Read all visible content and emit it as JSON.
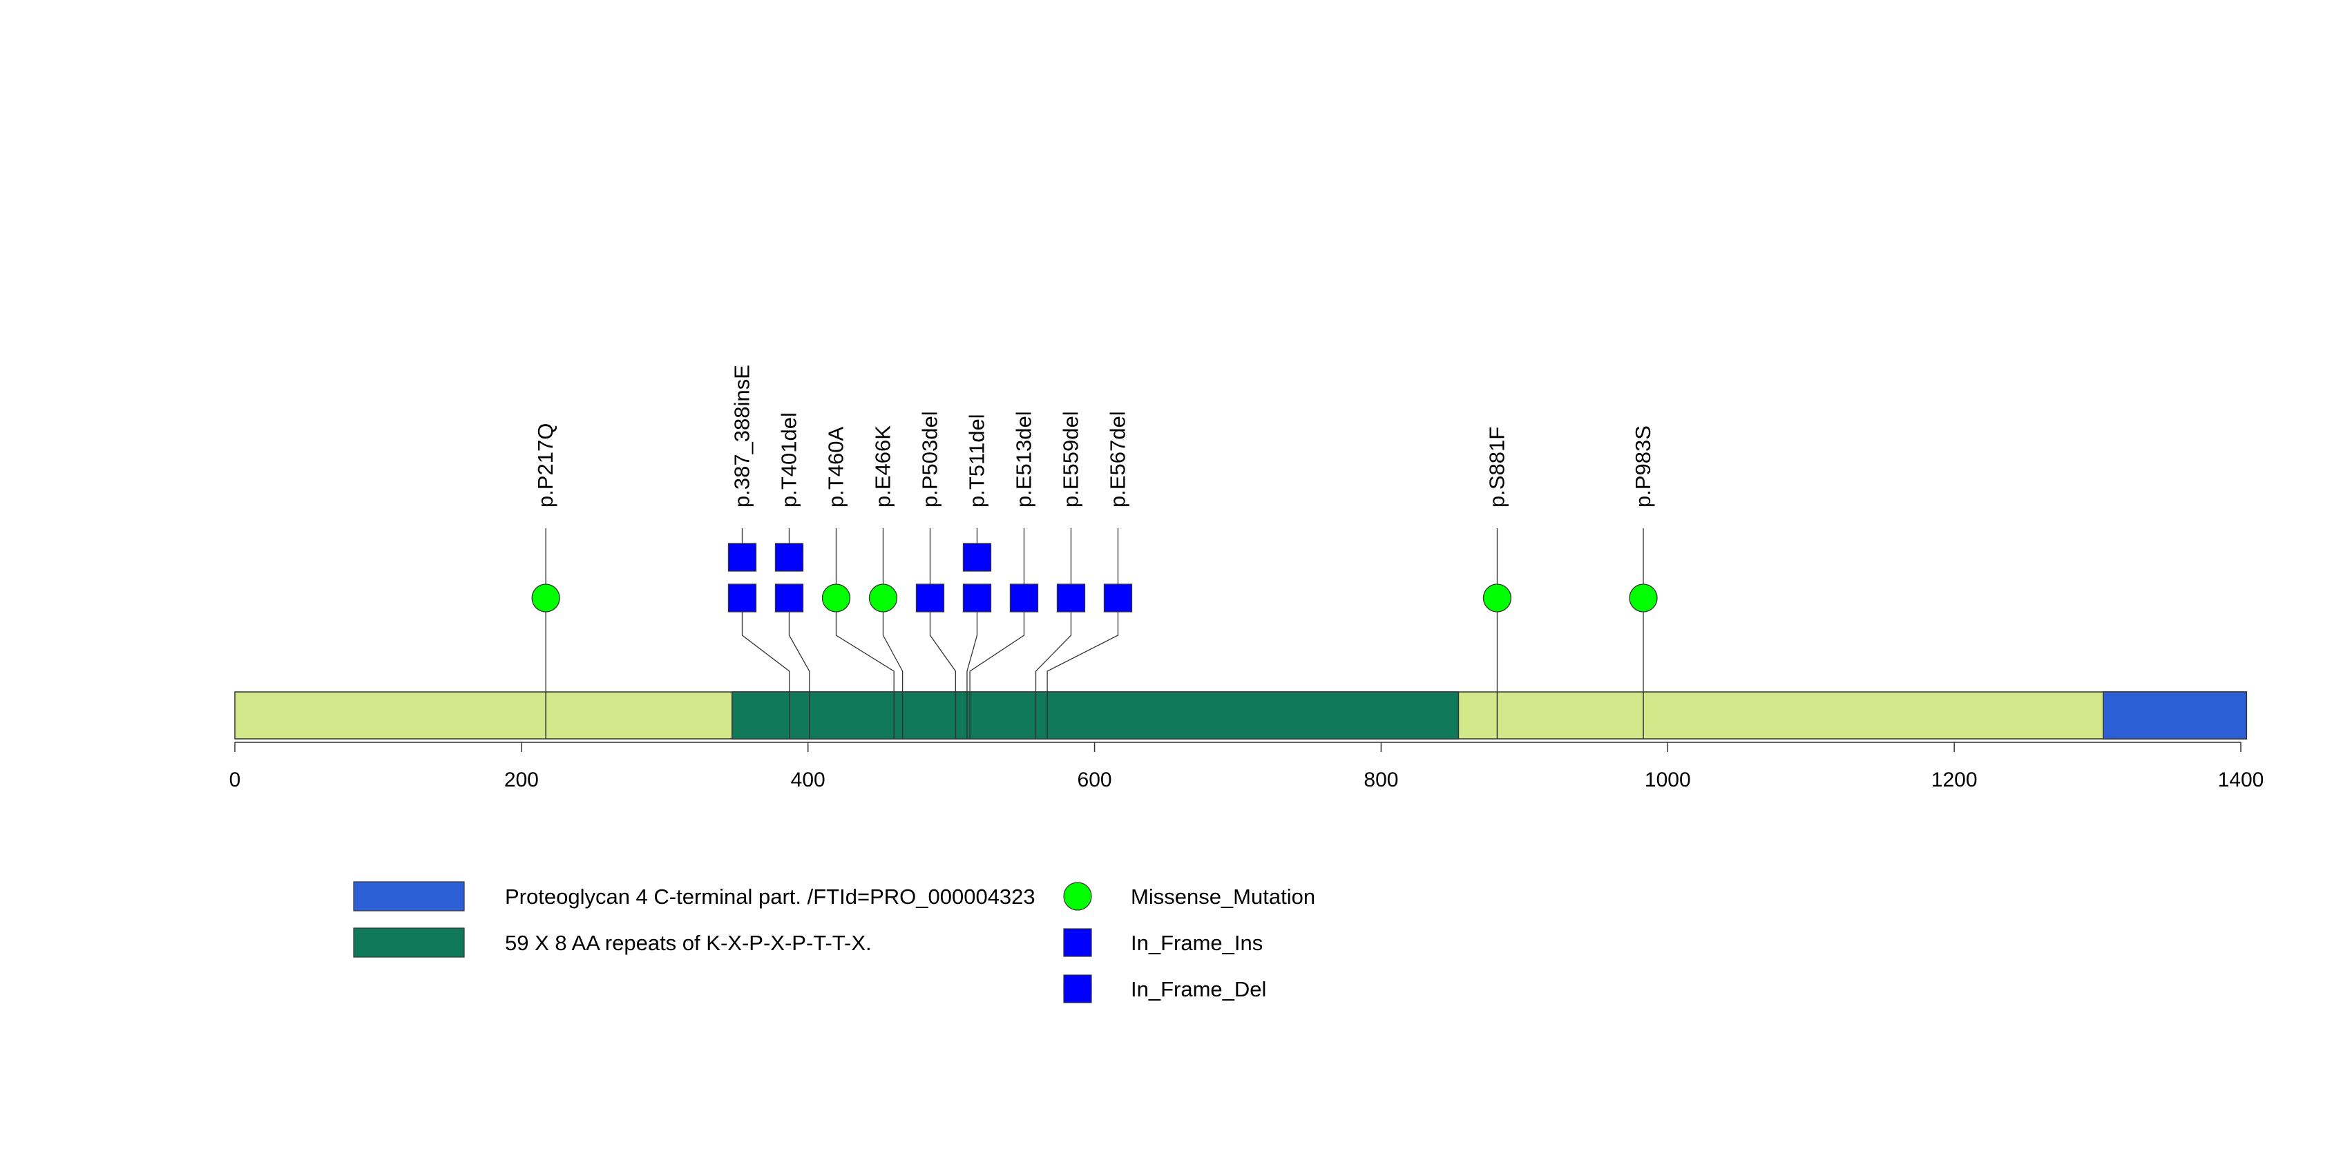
{
  "chart_data": {
    "type": "lollipop",
    "protein_length": 1404,
    "axis": {
      "ticks": [
        0,
        200,
        400,
        600,
        800,
        1000,
        1200,
        1400
      ],
      "tick_labels": [
        "0",
        "200",
        "400",
        "600",
        "800",
        "1000",
        "1200",
        "1400"
      ]
    },
    "backbone_color": "#d2e88a",
    "domains": [
      {
        "name": "59 X 8 AA repeats of K-X-P-X-P-T-T-X.",
        "start": 347,
        "end": 854,
        "color": "#10795a"
      },
      {
        "name": "Proteoglycan 4 C-terminal part. /FTId=PRO_000004323",
        "start": 1304,
        "end": 1404,
        "color": "#2d5fd6"
      }
    ],
    "mutation_types": {
      "Missense_Mutation": {
        "color": "#00ff00",
        "shape": "circle"
      },
      "In_Frame_Ins": {
        "color": "#0000ff",
        "shape": "square"
      },
      "In_Frame_Del": {
        "color": "#0000ff",
        "shape": "square"
      }
    },
    "mutations": [
      {
        "label": "p.P217Q",
        "position": 217,
        "markers": [
          "Missense_Mutation"
        ]
      },
      {
        "label": "p.387_388insE",
        "position": 387,
        "markers": [
          "In_Frame_Del",
          "In_Frame_Ins"
        ]
      },
      {
        "label": "p.T401del",
        "position": 401,
        "markers": [
          "In_Frame_Del",
          "In_Frame_Del"
        ]
      },
      {
        "label": "p.T460A",
        "position": 460,
        "markers": [
          "Missense_Mutation"
        ]
      },
      {
        "label": "p.E466K",
        "position": 466,
        "markers": [
          "Missense_Mutation"
        ]
      },
      {
        "label": "p.P503del",
        "position": 503,
        "markers": [
          "In_Frame_Del"
        ]
      },
      {
        "label": "p.T511del",
        "position": 511,
        "markers": [
          "In_Frame_Del",
          "In_Frame_Del"
        ]
      },
      {
        "label": "p.E513del",
        "position": 513,
        "markers": [
          "In_Frame_Del"
        ]
      },
      {
        "label": "p.E559del",
        "position": 559,
        "markers": [
          "In_Frame_Del"
        ]
      },
      {
        "label": "p.E567del",
        "position": 567,
        "markers": [
          "In_Frame_Del"
        ]
      },
      {
        "label": "p.S881F",
        "position": 881,
        "markers": [
          "Missense_Mutation"
        ]
      },
      {
        "label": "p.P983S",
        "position": 983,
        "markers": [
          "Missense_Mutation"
        ]
      }
    ],
    "legend": {
      "domains": [
        {
          "label": "Proteoglycan 4 C-terminal part. /FTId=PRO_000004323",
          "color": "#2d5fd6"
        },
        {
          "label": "59 X 8 AA repeats of K-X-P-X-P-T-T-X.",
          "color": "#10795a"
        }
      ],
      "mutations": [
        {
          "label": "Missense_Mutation",
          "color": "#00ff00",
          "shape": "circle"
        },
        {
          "label": "In_Frame_Ins",
          "color": "#0000ff",
          "shape": "square"
        },
        {
          "label": "In_Frame_Del",
          "color": "#0000ff",
          "shape": "square"
        }
      ]
    }
  }
}
